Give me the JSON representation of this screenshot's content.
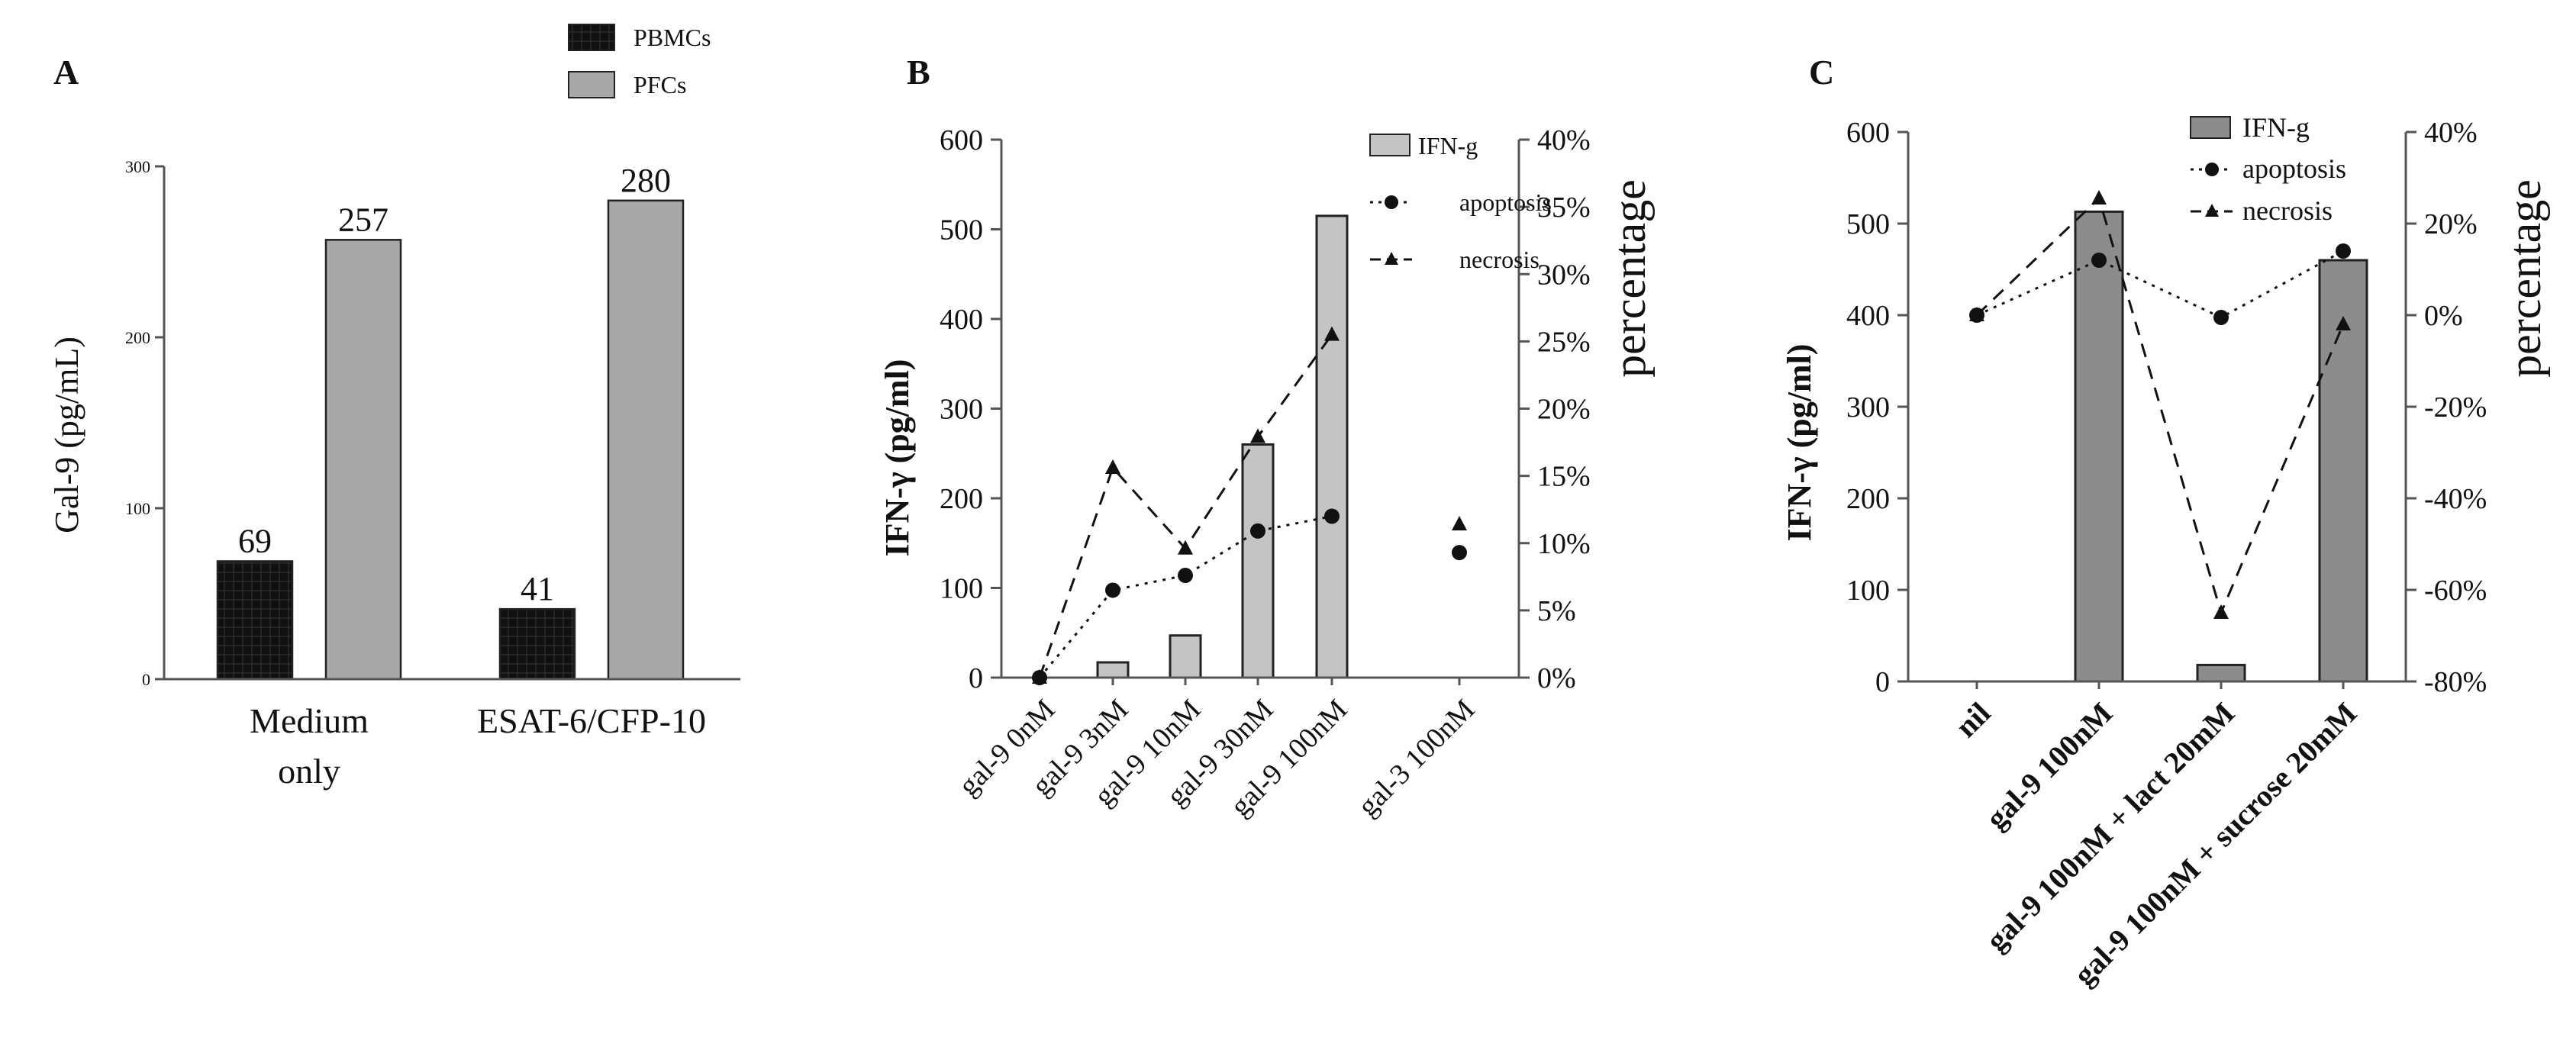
{
  "colors": {
    "pbmc_fill": "#111111",
    "pfc_fill": "#a8a8a8",
    "panel_b_bar": "#c4c4c4",
    "panel_c_bar": "#8c8c8c",
    "line": "#111111"
  },
  "panels": {
    "a": {
      "letter": "A"
    },
    "b": {
      "letter": "B"
    },
    "c": {
      "letter": "C"
    }
  },
  "chart_data": [
    {
      "id": "A",
      "type": "bar",
      "ylabel": "Gal-9 (pg/mL)",
      "ylim": [
        0,
        300
      ],
      "yticks": [
        0,
        100,
        200,
        300
      ],
      "categories": [
        [
          "Medium",
          "only"
        ],
        [
          "ESAT-6/CFP-10"
        ]
      ],
      "series": [
        {
          "name": "PBMCs",
          "values": [
            69,
            41
          ]
        },
        {
          "name": "PFCs",
          "values": [
            257,
            280
          ]
        }
      ],
      "data_labels": [
        [
          "69",
          "257"
        ],
        [
          "41",
          "280"
        ]
      ],
      "legend": {
        "position": "top-right",
        "entries": [
          "PBMCs",
          "PFCs"
        ]
      },
      "grid": false
    },
    {
      "id": "B",
      "type": "bar",
      "categories": [
        "gal-9 0nM",
        "gal-9 3nM",
        "gal-9 10nM",
        "gal-9 30nM",
        "gal-9 100nM",
        "gal-3 100nM"
      ],
      "ylabel": "IFN-γ (pg/ml)",
      "y2label": "percentage",
      "ylim": [
        0,
        600
      ],
      "yticks": [
        0,
        100,
        200,
        300,
        400,
        500,
        600
      ],
      "y2lim": [
        0,
        40
      ],
      "y2ticks": [
        "0%",
        "5%",
        "10%",
        "15%",
        "20%",
        "25%",
        "30%",
        "35%",
        "40%"
      ],
      "series": [
        {
          "name": "IFN-g",
          "type": "bar",
          "axis": "left",
          "values": [
            0,
            17,
            47,
            260,
            515,
            null
          ]
        },
        {
          "name": "apoptosis",
          "type": "line",
          "axis": "right",
          "values": [
            0,
            6.5,
            7.6,
            10.9,
            12.0,
            9.3
          ]
        },
        {
          "name": "necrosis",
          "type": "line",
          "axis": "right",
          "values": [
            0,
            15.6,
            9.6,
            17.9,
            25.5,
            11.4
          ]
        }
      ],
      "legend": {
        "position": "top-right",
        "entries": [
          "IFN-g",
          "apoptosis",
          "necrosis"
        ]
      },
      "grid": false
    },
    {
      "id": "C",
      "type": "bar",
      "categories": [
        "nil",
        "gal-9 100nM",
        "gal-9 100nM + lact 20mM",
        "gal-9 100nM + sucrose 20mM"
      ],
      "ylabel": "IFN-γ  (pg/ml)",
      "y2label": "percentage",
      "ylim": [
        0,
        600
      ],
      "yticks": [
        0,
        100,
        200,
        300,
        400,
        500,
        600
      ],
      "y2lim": [
        -80,
        40
      ],
      "y2ticks": [
        "-80%",
        "-60%",
        "-40%",
        "-20%",
        "0%",
        "20%",
        "40%"
      ],
      "series": [
        {
          "name": "IFN-g",
          "type": "bar",
          "axis": "left",
          "values": [
            null,
            513,
            18,
            460
          ]
        },
        {
          "name": "apoptosis",
          "type": "line",
          "axis": "right",
          "values": [
            0,
            12,
            -0.5,
            14
          ]
        },
        {
          "name": "necrosis",
          "type": "line",
          "axis": "right",
          "values": [
            0,
            25.5,
            -65,
            -2
          ]
        }
      ],
      "legend": {
        "position": "top-right",
        "entries": [
          "IFN-g",
          "apoptosis",
          "necrosis"
        ]
      },
      "grid": false
    }
  ]
}
